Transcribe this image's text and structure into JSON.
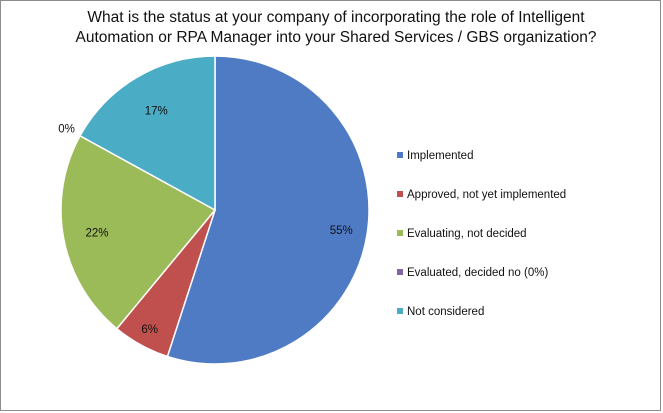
{
  "chart_data": {
    "type": "pie",
    "title_lines": [
      "What is the status at your company of incorporating the role of Intelligent",
      "Automation or RPA Manager into your Shared Services / GBS organization?"
    ],
    "categories": [
      "Implemented",
      "Approved, not yet implemented",
      "Evaluating, not decided",
      "Evaluated, decided no (0%)",
      "Not considered"
    ],
    "values": [
      55,
      6,
      22,
      0,
      17
    ],
    "data_labels": [
      "55%",
      "6%",
      "22%",
      "0%",
      "17%"
    ],
    "colors": [
      "#4F7BC4",
      "#C0504D",
      "#9BBB59",
      "#8064A2",
      "#4BACC6"
    ],
    "legend_position": "right"
  }
}
